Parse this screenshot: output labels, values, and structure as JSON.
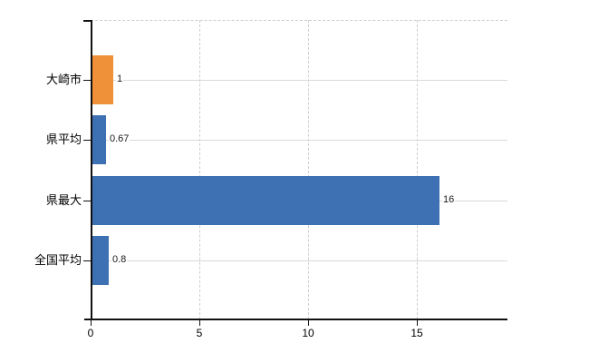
{
  "chart_data": {
    "type": "bar",
    "orientation": "horizontal",
    "title": "",
    "xlabel": "",
    "ylabel": "",
    "categories": [
      "大崎市",
      "県平均",
      "県最大",
      "全国平均"
    ],
    "values": [
      1,
      0.67,
      16,
      0.8
    ],
    "value_labels": [
      "1",
      "0.67",
      "16",
      "0.8"
    ],
    "bar_colors": [
      "#ef9138",
      "#3e70b4",
      "#3e70b4",
      "#3e70b4"
    ],
    "highlight_color": "#ef9138",
    "default_color": "#3e70b4",
    "x_ticks": [
      0,
      5,
      10,
      15
    ],
    "x_tick_labels": [
      "0",
      "5",
      "10",
      "15"
    ],
    "xlim": [
      0,
      19.17
    ],
    "grid": {
      "vertical": "dashed at x ticks",
      "horizontal": "solid at category centers",
      "top_border": "dashed"
    },
    "legend": "none"
  },
  "colors": {
    "background": "#ffffff",
    "axis": "#111111",
    "grid_dashed": "#cdcdcd",
    "grid_solid": "#d9d9d9",
    "text": "#000000"
  }
}
